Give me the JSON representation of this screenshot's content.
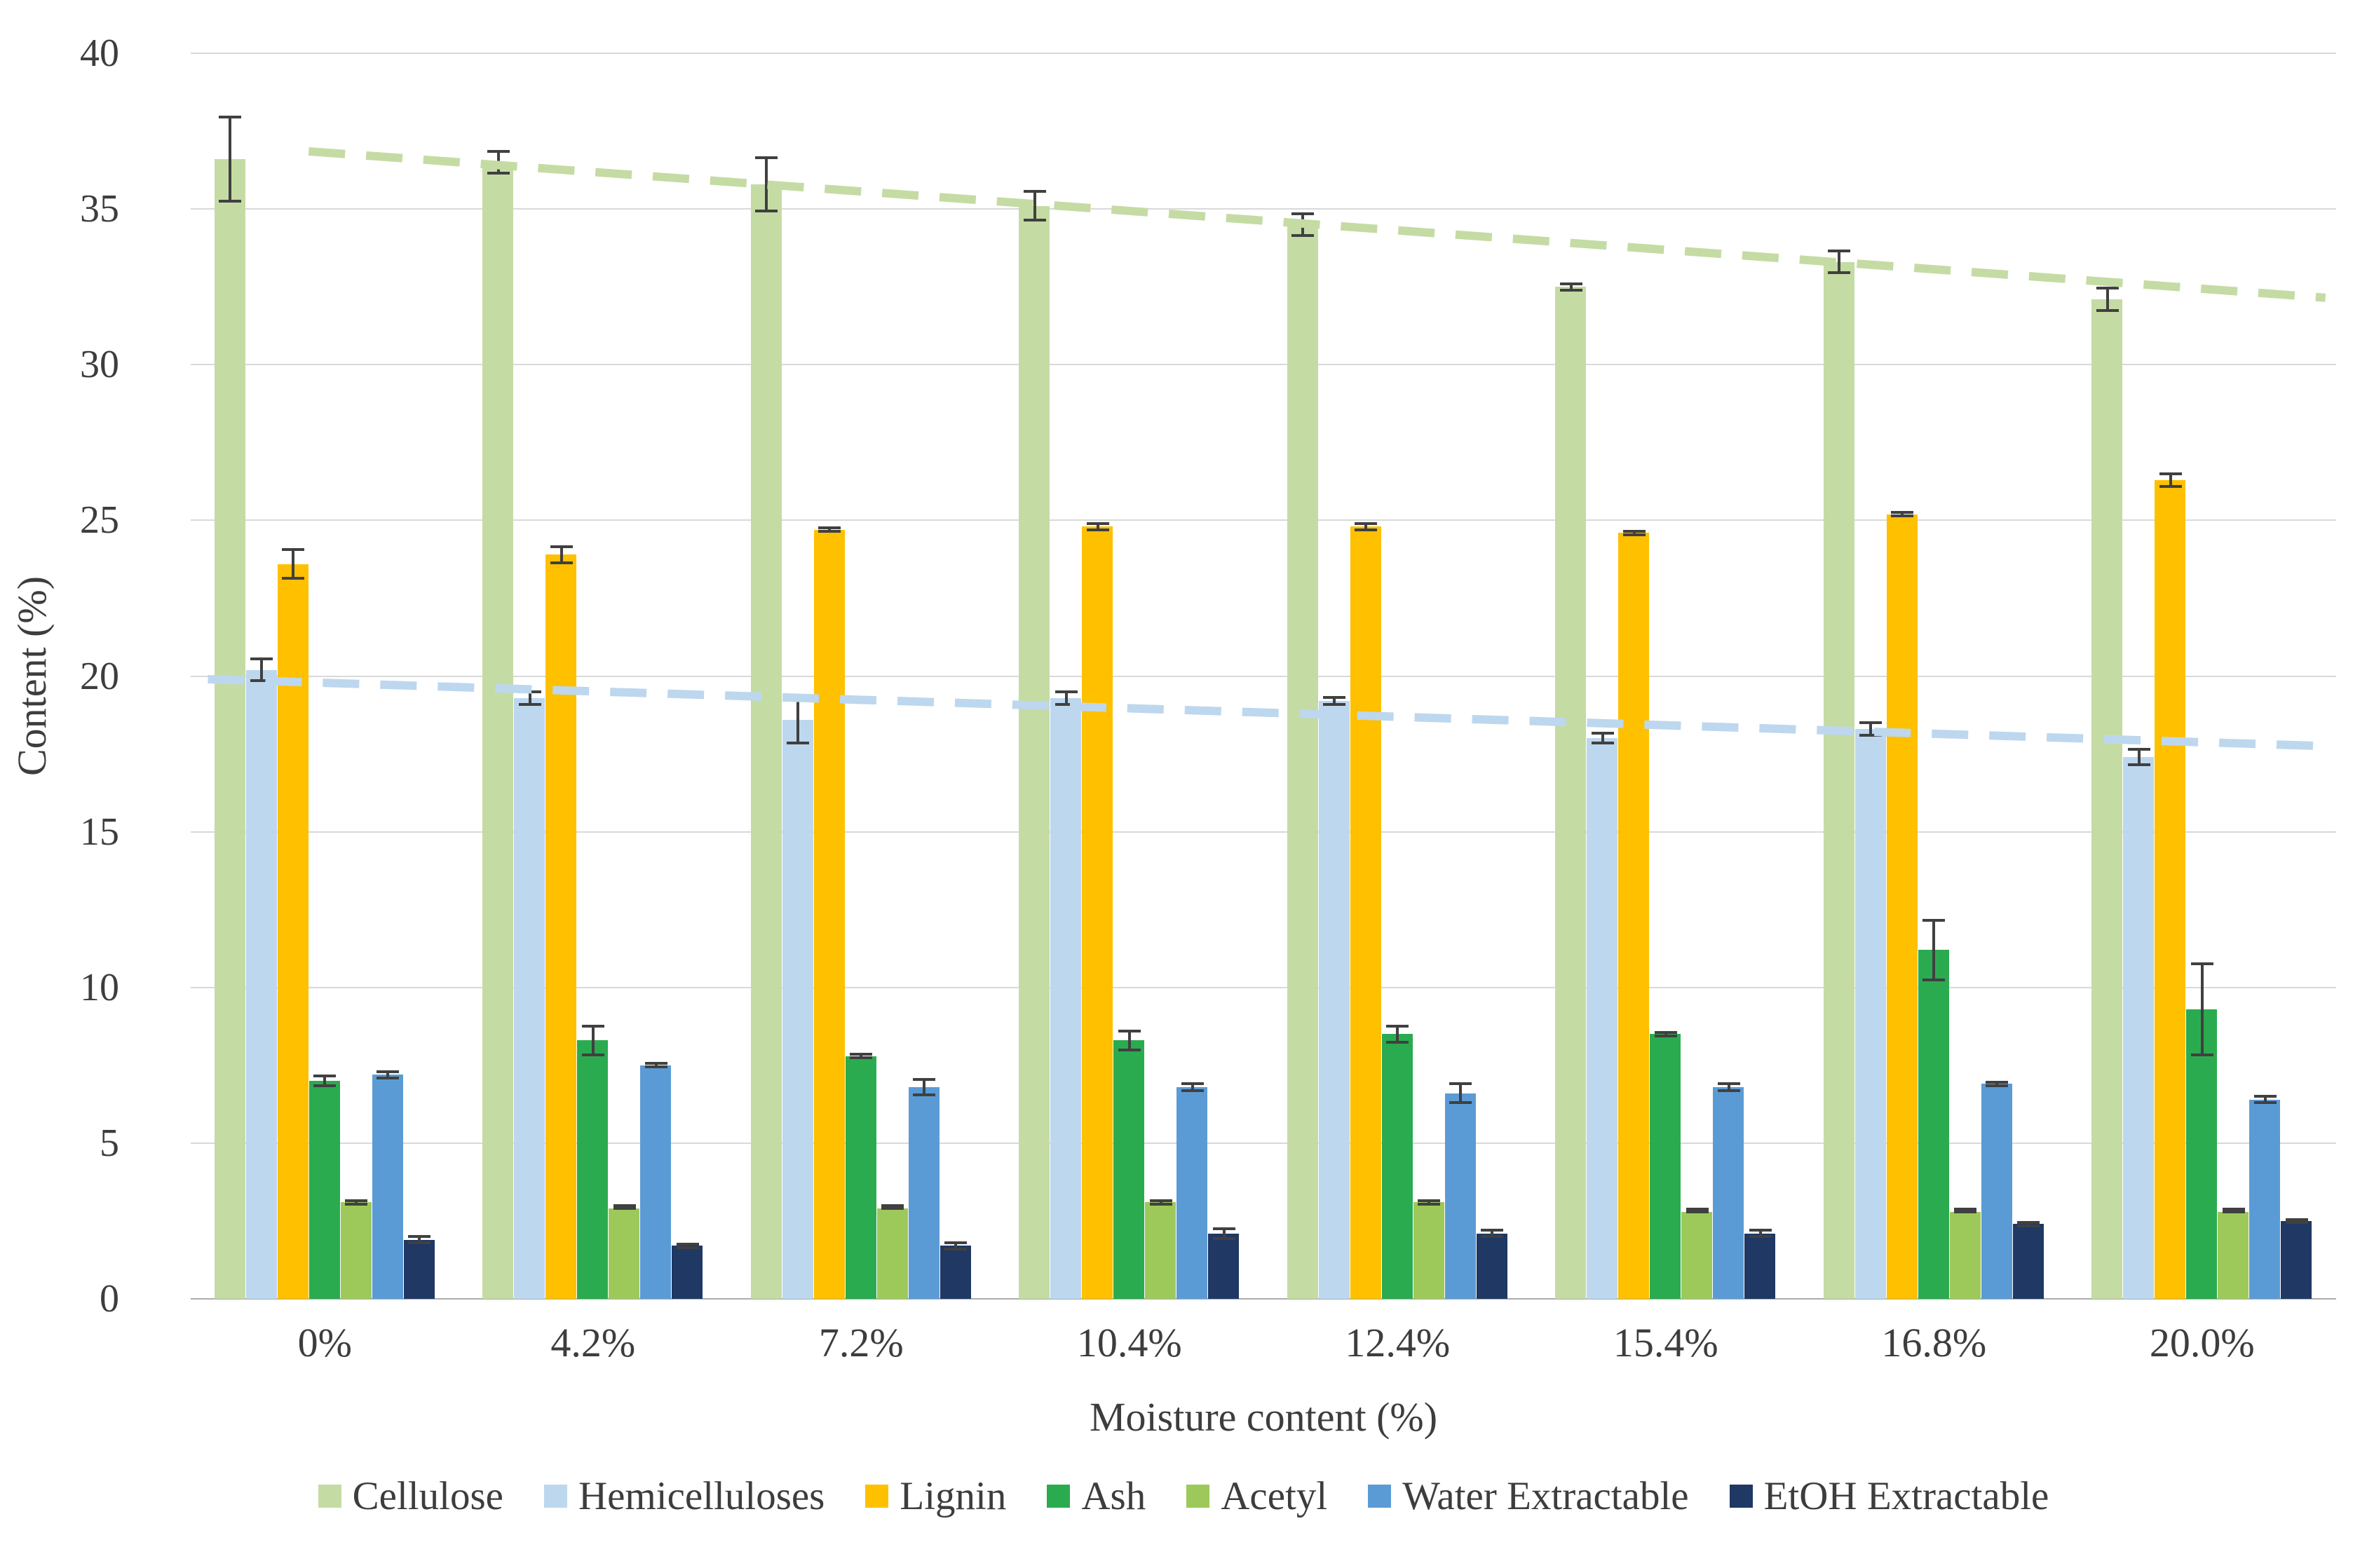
{
  "chart_data": {
    "type": "bar",
    "title": "",
    "xlabel": "Moisture content (%)",
    "ylabel": "Content (%)",
    "ylim": [
      0,
      40
    ],
    "yticks": [
      0,
      5,
      10,
      15,
      20,
      25,
      30,
      35,
      40
    ],
    "grid": true,
    "legend_position": "bottom",
    "categories": [
      "0%",
      "4.2%",
      "7.2%",
      "10.4%",
      "12.4%",
      "15.4%",
      "16.8%",
      "20.0%"
    ],
    "series": [
      {
        "name": "Cellulose",
        "color": "#c5dba4",
        "values": [
          36.6,
          36.5,
          35.8,
          35.1,
          34.5,
          32.5,
          33.3,
          32.1
        ],
        "errors": [
          1.4,
          0.4,
          0.9,
          0.5,
          0.4,
          0.15,
          0.4,
          0.4
        ]
      },
      {
        "name": "Hemicelluloses",
        "color": "#bdd7ee",
        "values": [
          20.2,
          19.3,
          18.6,
          19.3,
          19.2,
          18.0,
          18.3,
          17.4
        ],
        "errors": [
          0.4,
          0.25,
          0.8,
          0.25,
          0.15,
          0.2,
          0.25,
          0.3
        ]
      },
      {
        "name": "Lignin",
        "color": "#ffc000",
        "values": [
          23.6,
          23.9,
          24.7,
          24.8,
          24.8,
          24.6,
          25.2,
          26.3
        ],
        "errors": [
          0.5,
          0.3,
          0.1,
          0.15,
          0.15,
          0.1,
          0.1,
          0.25
        ]
      },
      {
        "name": "Ash",
        "color": "#2bab50",
        "values": [
          7.0,
          8.3,
          7.8,
          8.3,
          8.5,
          8.5,
          11.2,
          9.3
        ],
        "errors": [
          0.2,
          0.5,
          0.1,
          0.35,
          0.3,
          0.1,
          1.0,
          1.5
        ]
      },
      {
        "name": "Acetyl",
        "color": "#9dc95a",
        "values": [
          3.1,
          2.9,
          2.9,
          3.1,
          3.1,
          2.8,
          2.8,
          2.8
        ],
        "errors": [
          0.1,
          0.05,
          0.05,
          0.1,
          0.1,
          0.05,
          0.05,
          0.05
        ]
      },
      {
        "name": "Water Extractable",
        "color": "#5b9bd5",
        "values": [
          7.2,
          7.5,
          6.8,
          6.8,
          6.6,
          6.8,
          6.9,
          6.4
        ],
        "errors": [
          0.15,
          0.1,
          0.3,
          0.15,
          0.35,
          0.15,
          0.1,
          0.15
        ]
      },
      {
        "name": "EtOH Extractable",
        "color": "#1f3864",
        "values": [
          1.9,
          1.7,
          1.7,
          2.1,
          2.1,
          2.1,
          2.4,
          2.5
        ],
        "errors": [
          0.15,
          0.1,
          0.15,
          0.2,
          0.15,
          0.15,
          0.1,
          0.1
        ]
      }
    ],
    "trendlines": [
      {
        "for": "Cellulose",
        "color": "#c5dba4",
        "style": "dashed",
        "start_value": 36.85,
        "end_value": 32.15,
        "x_start_frac": 0.055,
        "x_end_frac": 0.995
      },
      {
        "for": "Hemicelluloses",
        "color": "#bdd7ee",
        "style": "dashed",
        "start_value": 19.9,
        "end_value": 17.75,
        "x_start_frac": 0.008,
        "x_end_frac": 0.995
      }
    ]
  }
}
